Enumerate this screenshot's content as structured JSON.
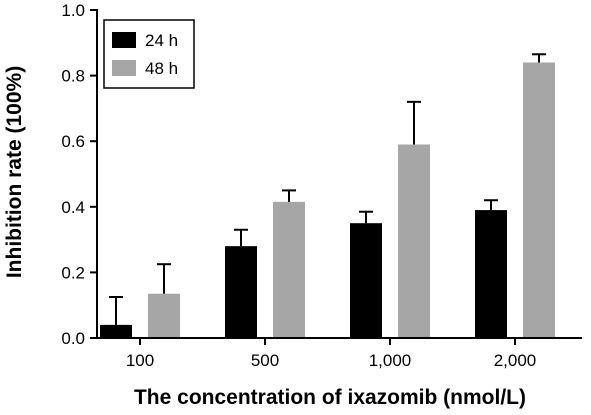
{
  "chart_data": {
    "type": "bar",
    "title": "",
    "xlabel": "The concentration of ixazomib (nmol/L)",
    "ylabel": "Inhibition rate (100%)",
    "categories": [
      "100",
      "500",
      "1,000",
      "2,000"
    ],
    "ylim": [
      0,
      1.0
    ],
    "yticks": [
      "0.0",
      "0.2",
      "0.4",
      "0.6",
      "0.8",
      "1.0"
    ],
    "grid": false,
    "legend_position": "top-left",
    "series": [
      {
        "name": "24 h",
        "color": "#000000",
        "values": [
          0.04,
          0.28,
          0.35,
          0.39
        ],
        "errors": [
          0.085,
          0.05,
          0.035,
          0.03
        ]
      },
      {
        "name": "48 h",
        "color": "#a6a6a6",
        "values": [
          0.135,
          0.415,
          0.59,
          0.84
        ],
        "errors": [
          0.09,
          0.035,
          0.13,
          0.025
        ]
      }
    ]
  }
}
